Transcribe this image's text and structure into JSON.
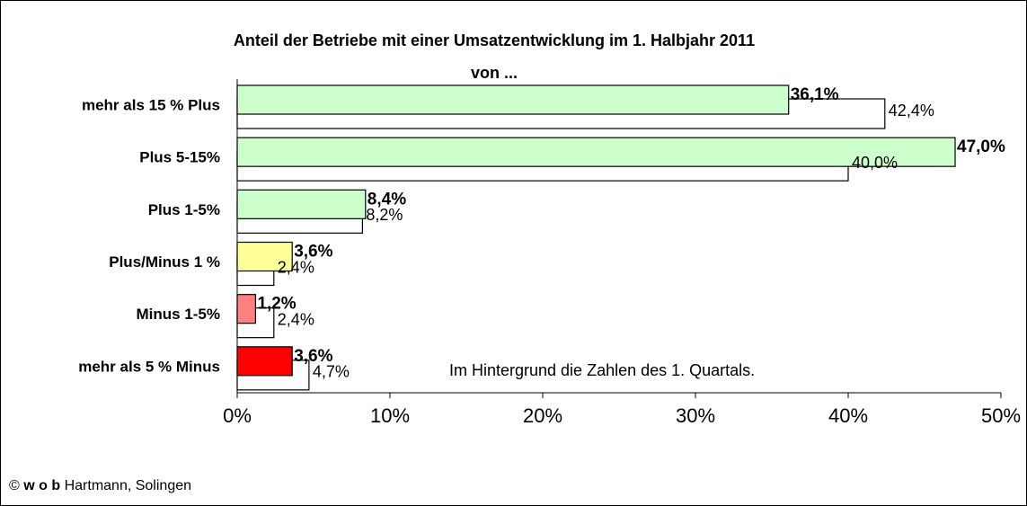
{
  "chart_data": {
    "type": "bar",
    "orientation": "horizontal",
    "title": [
      "Anteil der Betriebe mit einer Umsatzentwicklung im 1. Halbjahr 2011",
      "von ..."
    ],
    "categories": [
      "mehr als 15 % Plus",
      "Plus 5-15%",
      "Plus 1-5%",
      "Plus/Minus 1 %",
      "Minus 1-5%",
      "mehr als 5 % Minus"
    ],
    "series": [
      {
        "colors": [
          "#ccffcc",
          "#ccffcc",
          "#ccffcc",
          "#ffff99",
          "#ff8080",
          "#ff0000"
        ],
        "values": [
          36.1,
          47.0,
          8.4,
          3.6,
          1.2,
          3.6
        ],
        "value_labels": [
          "36,1%",
          "47,0%",
          "8,4%",
          "3,6%",
          "1,2%",
          "3,6%"
        ]
      },
      {
        "color": "#ffffff",
        "values": [
          42.4,
          40.0,
          8.2,
          2.4,
          2.4,
          4.7
        ],
        "value_labels": [
          "42,4%",
          "40,0%",
          "8,2%",
          "2,4%",
          "2,4%",
          "4,7%"
        ]
      }
    ],
    "xlim": [
      0,
      50
    ],
    "xticks": [
      {
        "value": 0,
        "label": "0%"
      },
      {
        "value": 10,
        "label": "10%"
      },
      {
        "value": 20,
        "label": "20%"
      },
      {
        "value": 30,
        "label": "30%"
      },
      {
        "value": 40,
        "label": "40%"
      },
      {
        "value": 50,
        "label": "50%"
      }
    ],
    "annotation": "Im Hintergrund die Zahlen des 1. Quartals.",
    "source": {
      "symbol": "©",
      "bold": "w o b",
      "text": "Hartmann, Solingen"
    }
  }
}
